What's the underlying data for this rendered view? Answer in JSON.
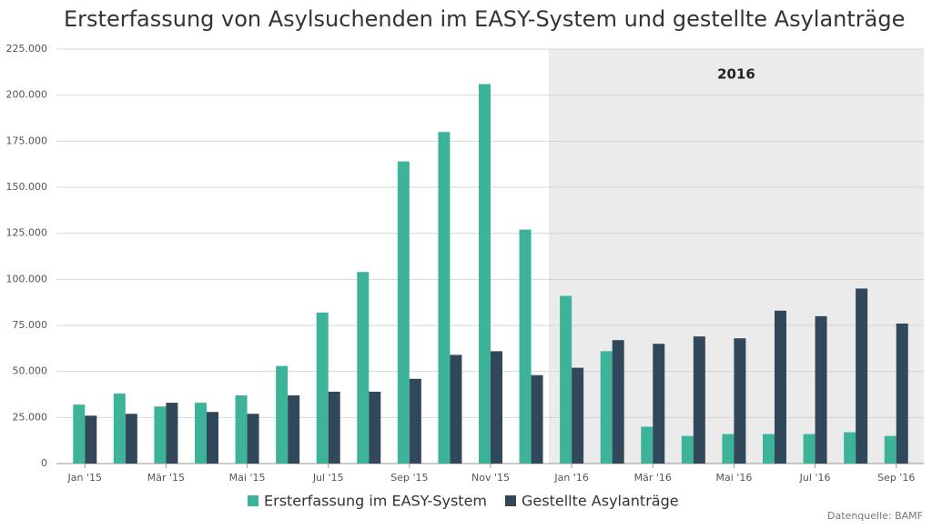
{
  "chart_data": {
    "type": "bar",
    "title": "Ersterfassung von Asylsuchenden im EASY-System und gestellte Asylanträge",
    "categories": [
      "Jan '15",
      null,
      "Mär '15",
      null,
      "Mai '15",
      null,
      "Jul '15",
      null,
      "Sep '15",
      null,
      "Nov '15",
      null,
      "Jan '16",
      null,
      "Mär '16",
      null,
      "Mai '16",
      null,
      "Jul '16",
      null,
      "Sep '16"
    ],
    "series": [
      {
        "name": "Ersterfassung im EASY-System",
        "color": "#3db49a",
        "values": [
          32000,
          38000,
          31000,
          33000,
          37000,
          53000,
          82000,
          104000,
          164000,
          180000,
          206000,
          127000,
          91000,
          61000,
          20000,
          15000,
          16000,
          16000,
          16000,
          17000,
          15000
        ]
      },
      {
        "name": "Gestellte Asylanträge",
        "color": "#304859",
        "values": [
          26000,
          27000,
          33000,
          28000,
          27000,
          37000,
          39000,
          39000,
          46000,
          59000,
          61000,
          48000,
          52000,
          67000,
          65000,
          69000,
          68000,
          83000,
          80000,
          95000,
          76000
        ]
      }
    ],
    "ylim": [
      0,
      225000
    ],
    "yticks": [
      0,
      {
        "value": 25000,
        "label": "25.000"
      },
      {
        "value": 50000,
        "label": "50.000"
      },
      {
        "value": 75000,
        "label": "75.000"
      },
      {
        "value": 100000,
        "label": "100.000"
      },
      {
        "value": 125000,
        "label": "125.000"
      },
      {
        "value": 150000,
        "label": "150.000"
      },
      {
        "value": 175000,
        "label": "175.000"
      },
      {
        "value": 200000,
        "label": "200.000"
      },
      {
        "value": 225000,
        "label": "225.000"
      }
    ],
    "grid": true,
    "annotation": "2016",
    "source": "Datenquelle: BAMF"
  }
}
